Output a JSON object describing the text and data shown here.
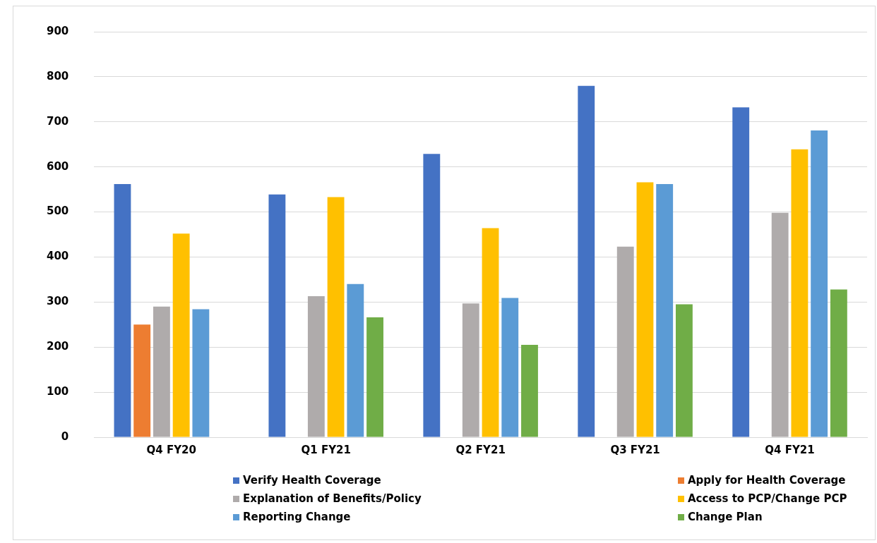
{
  "chart_data": {
    "type": "bar",
    "categories": [
      "Q4 FY20",
      "Q1 FY21",
      "Q2 FY21",
      "Q3 FY21",
      "Q4 FY21"
    ],
    "series": [
      {
        "name": "Verify Health Coverage",
        "color": "#4472c4",
        "values": [
          562,
          539,
          629,
          780,
          732
        ]
      },
      {
        "name": "Apply for Health Coverage",
        "color": "#ed7d31",
        "values": [
          250,
          null,
          null,
          null,
          null
        ]
      },
      {
        "name": "Explanation of Benefits/Policy",
        "color": "#afabab",
        "values": [
          290,
          313,
          297,
          423,
          498
        ]
      },
      {
        "name": "Access to PCP/Change PCP",
        "color": "#ffc000",
        "values": [
          452,
          533,
          464,
          566,
          639
        ]
      },
      {
        "name": "Reporting Change",
        "color": "#5b9bd5",
        "values": [
          284,
          340,
          309,
          562,
          681
        ]
      },
      {
        "name": "Change Plan",
        "color": "#70ad47",
        "values": [
          null,
          266,
          205,
          295,
          328
        ]
      }
    ],
    "ylim": [
      0,
      900
    ],
    "yticks": [
      0,
      100,
      200,
      300,
      400,
      500,
      600,
      700,
      800,
      900
    ],
    "grid": "y",
    "legend": "bottom"
  }
}
